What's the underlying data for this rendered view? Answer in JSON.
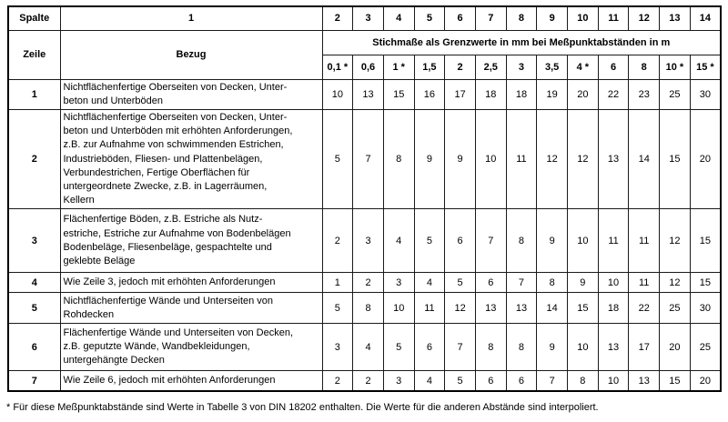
{
  "table": {
    "corner": {
      "spalte_label": "Spalte",
      "zeile_label": "Zeile",
      "bezug_label": "Bezug",
      "col1_label": "1"
    },
    "header": {
      "column_numbers": [
        "2",
        "3",
        "4",
        "5",
        "6",
        "7",
        "8",
        "9",
        "10",
        "11",
        "12",
        "13",
        "14"
      ],
      "span_title": "Stichmaße als Grenzwerte in mm bei Meßpunktabständen in m",
      "distances": [
        "0,1 *",
        "0,6",
        "1 *",
        "1,5",
        "2",
        "2,5",
        "3",
        "3,5",
        "4 *",
        "6",
        "8",
        "10 *",
        "15 *"
      ]
    },
    "rows": [
      {
        "zeile": "1",
        "bezug": "Nichtflächenfertige Oberseiten von Decken, Unter-\nbeton und Unterböden",
        "values": [
          "10",
          "13",
          "15",
          "16",
          "17",
          "18",
          "18",
          "19",
          "20",
          "22",
          "23",
          "25",
          "30"
        ]
      },
      {
        "zeile": "2",
        "bezug": "Nichtflächenfertige Oberseiten von Decken, Unter-\nbeton und Unterböden mit erhöhten Anforderungen,\nz.B. zur Aufnahme von schwimmenden Estrichen,\nIndustrieböden, Fliesen- und Plattenbelägen,\nVerbundestrichen, Fertige Oberflächen für\nuntergeordnete Zwecke, z.B. in Lagerräumen,\nKellern",
        "values": [
          "5",
          "7",
          "8",
          "9",
          "9",
          "10",
          "11",
          "12",
          "12",
          "13",
          "14",
          "15",
          "20"
        ]
      },
      {
        "zeile": "3",
        "bezug": "Flächenfertige Böden, z.B. Estriche als Nutz-\nestriche, Estriche zur Aufnahme von Bodenbelägen\nBodenbeläge, Fliesenbeläge, gespachtelte und\ngeklebte Beläge",
        "values": [
          "2",
          "3",
          "4",
          "5",
          "6",
          "7",
          "8",
          "9",
          "10",
          "11",
          "11",
          "12",
          "15"
        ]
      },
      {
        "zeile": "4",
        "bezug": "Wie Zeile 3, jedoch mit erhöhten Anforderungen",
        "values": [
          "1",
          "2",
          "3",
          "4",
          "5",
          "6",
          "7",
          "8",
          "9",
          "10",
          "11",
          "12",
          "15"
        ]
      },
      {
        "zeile": "5",
        "bezug": "Nichtflächenfertige Wände und Unterseiten von\nRohdecken",
        "values": [
          "5",
          "8",
          "10",
          "11",
          "12",
          "13",
          "13",
          "14",
          "15",
          "18",
          "22",
          "25",
          "30"
        ]
      },
      {
        "zeile": "6",
        "bezug": "Flächenfertige Wände und Unterseiten von Decken,\nz.B. geputzte Wände, Wandbekleidungen,\nuntergehängte Decken",
        "values": [
          "3",
          "4",
          "5",
          "6",
          "7",
          "8",
          "8",
          "9",
          "10",
          "13",
          "17",
          "20",
          "25"
        ]
      },
      {
        "zeile": "7",
        "bezug": "Wie Zeile 6, jedoch mit erhöhten Anforderungen",
        "values": [
          "2",
          "2",
          "3",
          "4",
          "5",
          "6",
          "6",
          "7",
          "8",
          "10",
          "13",
          "15",
          "20"
        ]
      }
    ]
  },
  "footnote": "* Für diese Meßpunktabstände sind Werte in Tabelle 3 von DIN 18202 enthalten. Die Werte für die anderen Abstände sind interpoliert."
}
